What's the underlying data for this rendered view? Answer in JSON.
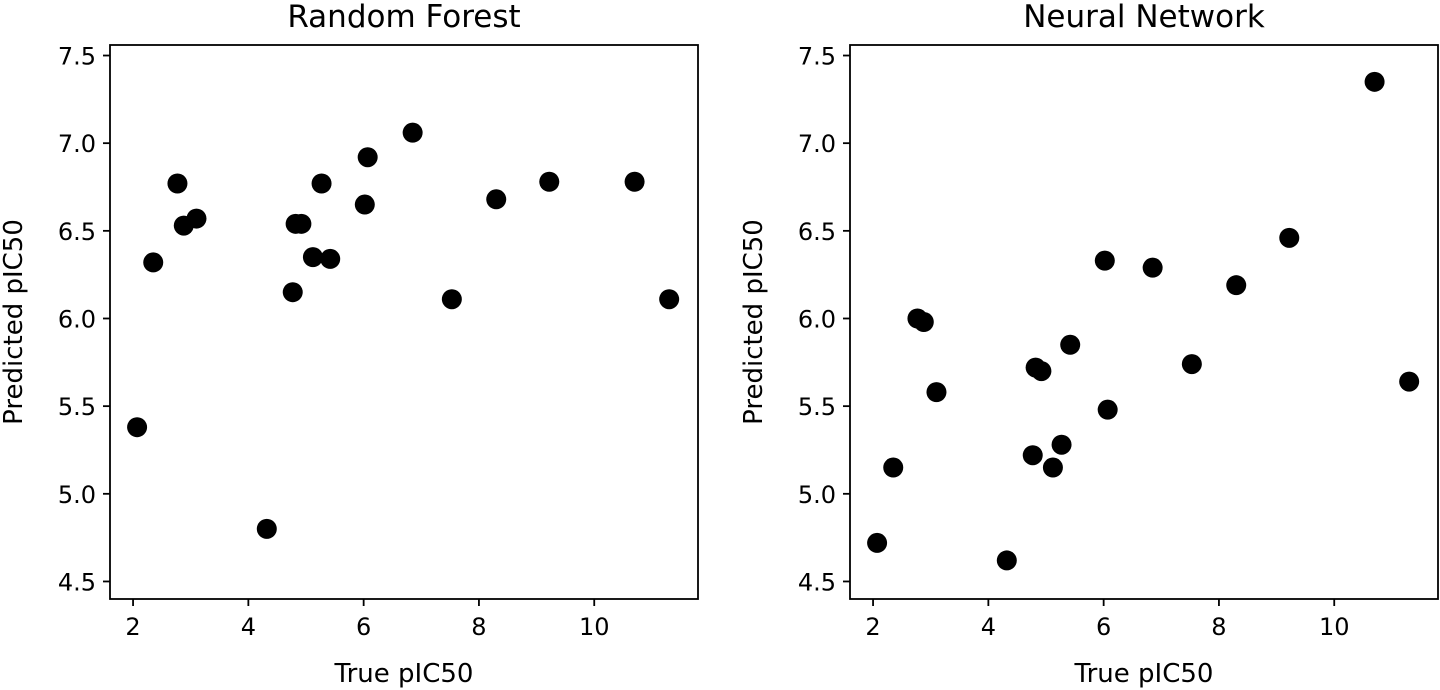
{
  "chart_data": [
    {
      "type": "scatter",
      "title": "Random Forest",
      "xlabel": "True pIC50",
      "ylabel": "Predicted pIC50",
      "xlim": [
        1.6,
        11.8
      ],
      "ylim": [
        4.4,
        7.56
      ],
      "xticks": [
        2,
        4,
        6,
        8,
        10
      ],
      "xtick_labels": [
        "2",
        "4",
        "6",
        "8",
        "10"
      ],
      "yticks": [
        4.5,
        5.0,
        5.5,
        6.0,
        6.5,
        7.0,
        7.5
      ],
      "ytick_labels": [
        "4.5",
        "5.0",
        "5.5",
        "6.0",
        "6.5",
        "7.0",
        "7.5"
      ],
      "grid": false,
      "marker_color": "#000000",
      "points": [
        {
          "x": 2.07,
          "y": 5.38
        },
        {
          "x": 2.35,
          "y": 6.32
        },
        {
          "x": 2.77,
          "y": 6.77
        },
        {
          "x": 2.88,
          "y": 6.53
        },
        {
          "x": 3.1,
          "y": 6.57
        },
        {
          "x": 4.32,
          "y": 4.8
        },
        {
          "x": 4.77,
          "y": 6.15
        },
        {
          "x": 4.82,
          "y": 6.54
        },
        {
          "x": 4.92,
          "y": 6.54
        },
        {
          "x": 5.12,
          "y": 6.35
        },
        {
          "x": 5.27,
          "y": 6.77
        },
        {
          "x": 5.42,
          "y": 6.34
        },
        {
          "x": 6.02,
          "y": 6.65
        },
        {
          "x": 6.07,
          "y": 6.92
        },
        {
          "x": 6.85,
          "y": 7.06
        },
        {
          "x": 7.53,
          "y": 6.11
        },
        {
          "x": 8.3,
          "y": 6.68
        },
        {
          "x": 9.22,
          "y": 6.78
        },
        {
          "x": 10.7,
          "y": 6.78
        },
        {
          "x": 11.3,
          "y": 6.11
        }
      ]
    },
    {
      "type": "scatter",
      "title": "Neural Network",
      "xlabel": "True pIC50",
      "ylabel": "Predicted pIC50",
      "xlim": [
        1.6,
        11.8
      ],
      "ylim": [
        4.4,
        7.56
      ],
      "xticks": [
        2,
        4,
        6,
        8,
        10
      ],
      "xtick_labels": [
        "2",
        "4",
        "6",
        "8",
        "10"
      ],
      "yticks": [
        4.5,
        5.0,
        5.5,
        6.0,
        6.5,
        7.0,
        7.5
      ],
      "ytick_labels": [
        "4.5",
        "5.0",
        "5.5",
        "6.0",
        "6.5",
        "7.0",
        "7.5"
      ],
      "grid": false,
      "marker_color": "#000000",
      "points": [
        {
          "x": 2.07,
          "y": 4.72
        },
        {
          "x": 2.35,
          "y": 5.15
        },
        {
          "x": 2.77,
          "y": 6.0
        },
        {
          "x": 2.88,
          "y": 5.98
        },
        {
          "x": 3.1,
          "y": 5.58
        },
        {
          "x": 4.32,
          "y": 4.62
        },
        {
          "x": 4.77,
          "y": 5.22
        },
        {
          "x": 4.82,
          "y": 5.72
        },
        {
          "x": 4.92,
          "y": 5.7
        },
        {
          "x": 5.12,
          "y": 5.15
        },
        {
          "x": 5.27,
          "y": 5.28
        },
        {
          "x": 5.42,
          "y": 5.85
        },
        {
          "x": 6.02,
          "y": 6.33
        },
        {
          "x": 6.07,
          "y": 5.48
        },
        {
          "x": 6.85,
          "y": 6.29
        },
        {
          "x": 7.53,
          "y": 5.74
        },
        {
          "x": 8.3,
          "y": 6.19
        },
        {
          "x": 9.22,
          "y": 6.46
        },
        {
          "x": 10.7,
          "y": 7.35
        },
        {
          "x": 11.3,
          "y": 5.64
        }
      ]
    }
  ]
}
